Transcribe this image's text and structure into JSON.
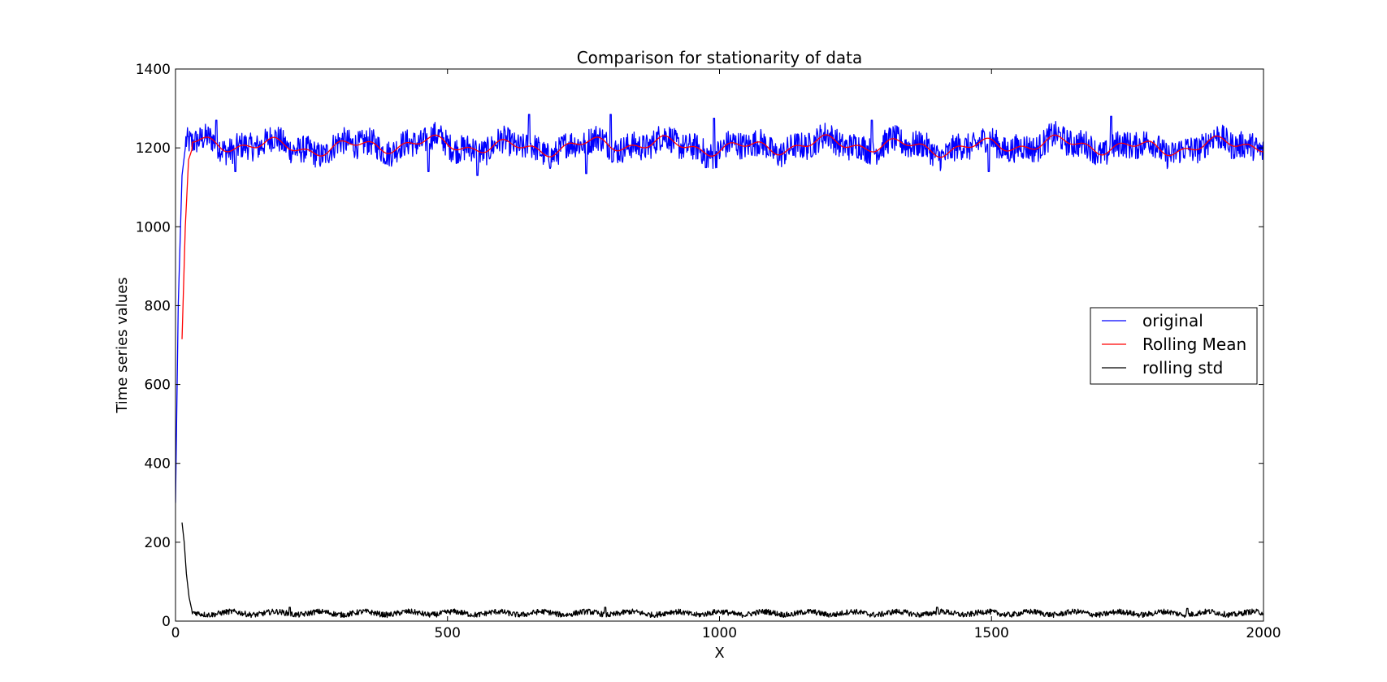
{
  "chart_data": {
    "type": "line",
    "title": "Comparison for stationarity of data",
    "xlabel": "X",
    "ylabel": "Time series values",
    "xlim": [
      0,
      2000
    ],
    "ylim": [
      0,
      1400
    ],
    "xticks": [
      0,
      500,
      1000,
      1500,
      2000
    ],
    "yticks": [
      0,
      200,
      400,
      600,
      800,
      1000,
      1200,
      1400
    ],
    "grid": false,
    "legend_position": "center-right",
    "series": [
      {
        "name": "original",
        "color": "#0000ff",
        "pattern": "noise",
        "start": {
          "x": 0,
          "y": 300
        },
        "ramp": [
          [
            0,
            300
          ],
          [
            5,
            800
          ],
          [
            12,
            1130
          ],
          [
            18,
            1200
          ]
        ],
        "mean": 1205,
        "amplitude": 35,
        "peaks": [
          [
            75,
            1270
          ],
          [
            650,
            1285
          ],
          [
            800,
            1285
          ],
          [
            990,
            1275
          ],
          [
            1280,
            1270
          ],
          [
            1720,
            1280
          ]
        ],
        "troughs": [
          [
            110,
            1140
          ],
          [
            465,
            1140
          ],
          [
            555,
            1130
          ],
          [
            755,
            1135
          ],
          [
            975,
            1150
          ],
          [
            1495,
            1140
          ]
        ]
      },
      {
        "name": "Rolling Mean",
        "color": "#ff0000",
        "pattern": "smooth",
        "start": {
          "x": 12,
          "y": 715
        },
        "ramp": [
          [
            12,
            715
          ],
          [
            18,
            1000
          ],
          [
            24,
            1170
          ],
          [
            30,
            1195
          ]
        ],
        "mean": 1205,
        "amplitude": 22
      },
      {
        "name": "rolling std",
        "color": "#000000",
        "pattern": "noise",
        "start": {
          "x": 12,
          "y": 250
        },
        "ramp": [
          [
            12,
            250
          ],
          [
            16,
            200
          ],
          [
            20,
            120
          ],
          [
            25,
            60
          ],
          [
            30,
            28
          ]
        ],
        "mean": 20,
        "amplitude": 7,
        "peaks": [
          [
            210,
            35
          ],
          [
            790,
            35
          ],
          [
            1400,
            35
          ],
          [
            1860,
            32
          ]
        ]
      }
    ]
  }
}
